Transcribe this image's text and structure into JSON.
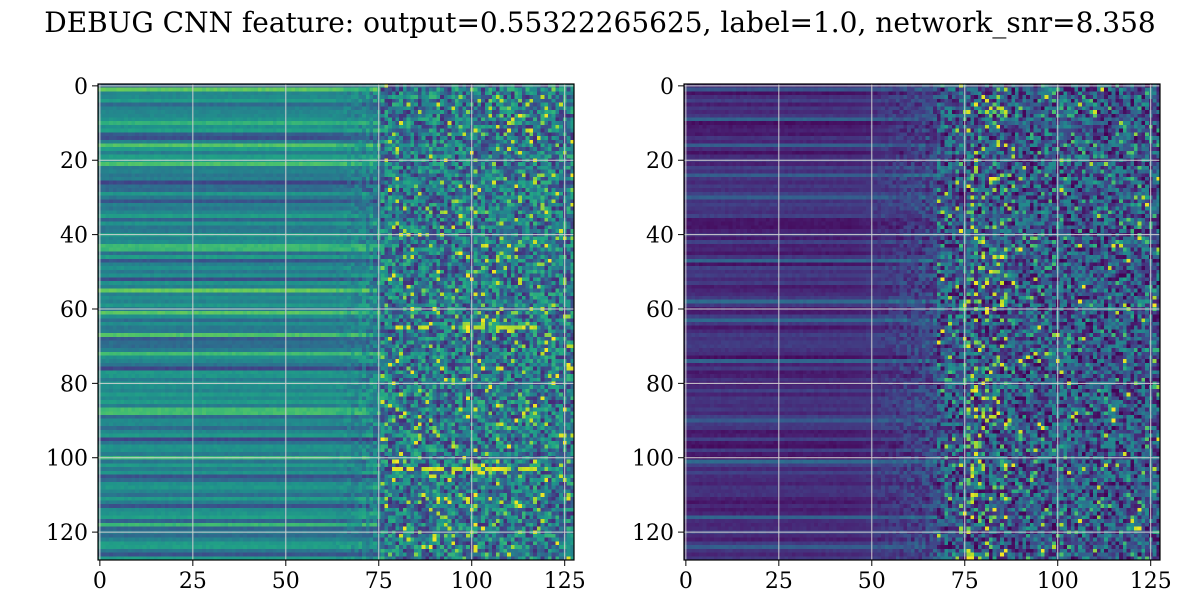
{
  "title": "DEBUG CNN feature: output=0.55322265625, label=1.0, network_snr=8.358",
  "chart_data": [
    {
      "type": "heatmap",
      "title": "",
      "xlabel": "",
      "ylabel": "",
      "colormap": "viridis",
      "shape": [
        128,
        128
      ],
      "xlim": [
        0,
        127
      ],
      "ylim": [
        127,
        0
      ],
      "xticks": [
        0,
        25,
        50,
        75,
        100,
        125
      ],
      "yticks": [
        0,
        20,
        40,
        60,
        80,
        100,
        120
      ],
      "grid": true,
      "description_of_values": "left columns smooth horizontal bands (mid intensity), right columns (x>75) noisy with bright yellow speckles, notably rows ~65 and ~103 around x 80-115"
    },
    {
      "type": "heatmap",
      "title": "",
      "xlabel": "",
      "ylabel": "",
      "colormap": "viridis",
      "shape": [
        128,
        128
      ],
      "xlim": [
        0,
        127
      ],
      "ylim": [
        127,
        0
      ],
      "xticks": [
        0,
        25,
        50,
        75,
        100,
        125
      ],
      "yticks": [
        0,
        20,
        40,
        60,
        80,
        100,
        120
      ],
      "grid": true,
      "description_of_values": "mostly dark purple low values; left half striped bands, right of x~50 noisy with bright spots concentrated near x~80"
    }
  ]
}
